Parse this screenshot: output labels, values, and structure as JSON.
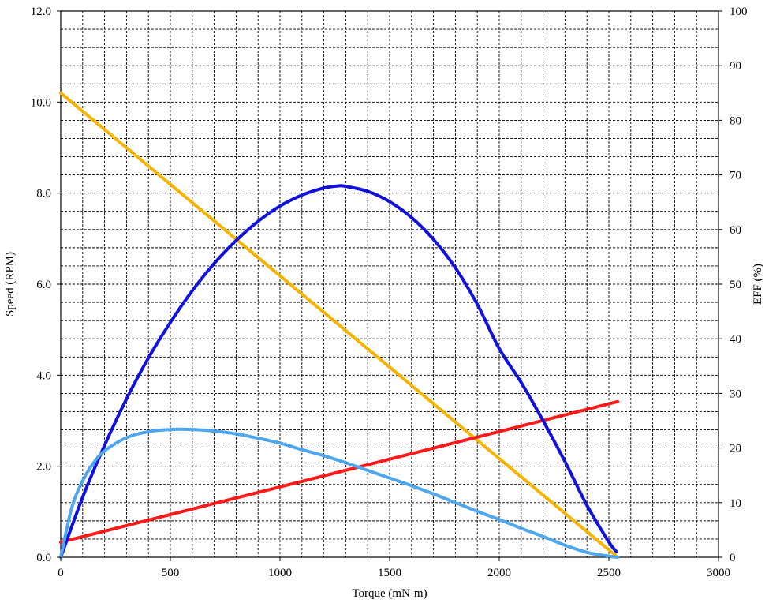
{
  "chart_data": {
    "type": "line",
    "title": "",
    "xlabel": "Torque (mN-m)",
    "ylabel_left": "Speed (RPM)",
    "ylabel_right": "EFF (%)",
    "xlim": [
      0,
      3000
    ],
    "ylim_left": [
      0,
      12
    ],
    "ylim_right": [
      0,
      100
    ],
    "x_ticks": [
      "0",
      "500",
      "1000",
      "1500",
      "2000",
      "2500",
      "3000"
    ],
    "y_left_ticks": [
      "0.0",
      "2.0",
      "4.0",
      "6.0",
      "8.0",
      "10.0",
      "12.0"
    ],
    "y_right_ticks": [
      "0",
      "10",
      "20",
      "30",
      "40",
      "50",
      "60",
      "70",
      "80",
      "90",
      "100"
    ],
    "grid": "dashed",
    "legend": "none",
    "series": [
      {
        "axis": "left",
        "color": "#f5b400",
        "x": [
          0,
          2540
        ],
        "y": [
          10.2,
          0.0
        ]
      },
      {
        "axis": "left",
        "color": "#ff1a1a",
        "x": [
          0,
          2540
        ],
        "y": [
          0.33,
          3.42
        ]
      },
      {
        "axis": "right",
        "color": "#1111dd",
        "x": [
          0,
          100,
          200,
          300,
          400,
          500,
          600,
          700,
          800,
          900,
          1000,
          1100,
          1200,
          1270,
          1300,
          1400,
          1500,
          1600,
          1700,
          1800,
          1900,
          2000,
          2100,
          2200,
          2300,
          2400,
          2500,
          2535
        ],
        "y": [
          0,
          11,
          20.5,
          29,
          36.5,
          43,
          48.8,
          53.8,
          58,
          61.5,
          64.3,
          66.3,
          67.6,
          68,
          67.9,
          67,
          65.1,
          62.2,
          58.2,
          53,
          46.3,
          38.2,
          32,
          25,
          17.5,
          9.5,
          2.8,
          1
        ]
      },
      {
        "axis": "right",
        "color": "#4da6ee",
        "x": [
          0,
          50,
          100,
          150,
          200,
          300,
          400,
          500,
          600,
          700,
          800,
          900,
          1000,
          1100,
          1200,
          1300,
          1400,
          1500,
          1600,
          1700,
          1800,
          1900,
          2000,
          2100,
          2200,
          2300,
          2400,
          2500,
          2540
        ],
        "y": [
          0,
          9,
          14,
          17.3,
          19.5,
          21.9,
          23,
          23.4,
          23.4,
          23.1,
          22.6,
          21.8,
          20.9,
          19.7,
          18.6,
          17.3,
          15.9,
          14.5,
          13.1,
          11.6,
          10,
          8.4,
          6.9,
          5.3,
          3.8,
          2.2,
          0.9,
          0.2,
          0
        ]
      }
    ]
  }
}
